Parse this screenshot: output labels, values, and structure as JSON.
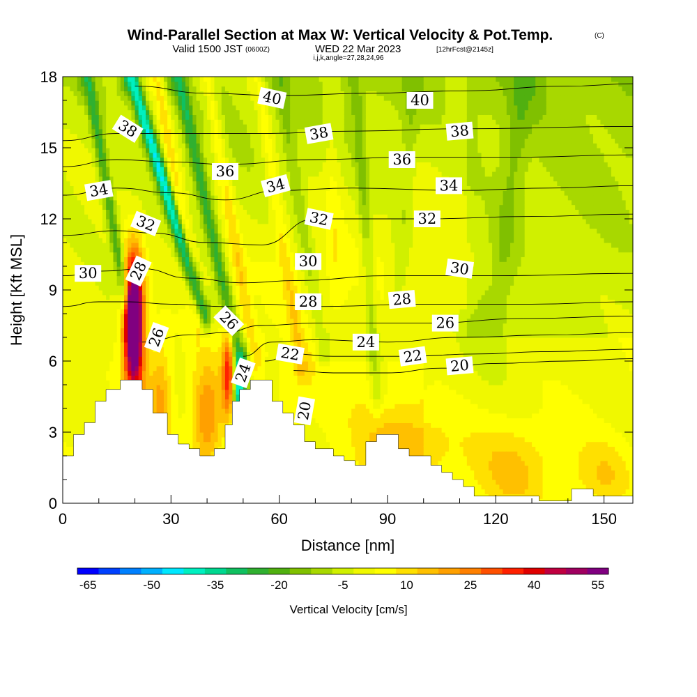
{
  "header": {
    "title": "Wind-Parallel Section at Max W: Vertical Velocity & Pot.Temp.",
    "copyright": "(C)",
    "valid_a": "Valid 1500 JST",
    "valid_z": "(0600Z)",
    "valid_b": "WED 22 Mar 2023",
    "forecast": "[12hrFcst@2145z]",
    "indices": "i,j,k,angle=27,28,24,96"
  },
  "chart_data": {
    "type": "heatmap",
    "title": "Wind-Parallel Section at Max W: Vertical Velocity & Pot.Temp.",
    "xlabel": "Distance [nm]",
    "ylabel": "Height [Kft MSL]",
    "xlim": [
      0,
      158
    ],
    "ylim": [
      0,
      18
    ],
    "x_ticks": [
      "0",
      "30",
      "60",
      "90",
      "120",
      "150"
    ],
    "y_ticks": [
      "0",
      "3",
      "6",
      "9",
      "12",
      "15",
      "18"
    ],
    "colorbar": {
      "label": "Vertical Velocity [cm/s]",
      "tick_labels": [
        "-65",
        "-50",
        "-35",
        "-20",
        "-5",
        "10",
        "25",
        "40",
        "55"
      ],
      "bins": [
        -65,
        -60,
        -55,
        -50,
        -45,
        -40,
        -35,
        -30,
        -25,
        -20,
        -15,
        -10,
        -5,
        0,
        5,
        10,
        15,
        20,
        25,
        30,
        35,
        40,
        45,
        50,
        55,
        60
      ],
      "colors": [
        "#0000ff",
        "#0040ff",
        "#0080ff",
        "#00b0ff",
        "#00e8ff",
        "#00f0c0",
        "#00d890",
        "#10c060",
        "#30b030",
        "#50b010",
        "#80c000",
        "#a8d800",
        "#d0f000",
        "#f0f800",
        "#ffff00",
        "#ffe000",
        "#ffc000",
        "#ffa000",
        "#ff8000",
        "#ff5000",
        "#ff2000",
        "#e00000",
        "#c00040",
        "#a00060",
        "#800080"
      ]
    },
    "terrain": [
      [
        0,
        2.0
      ],
      [
        3,
        2.0
      ],
      [
        3,
        2.9
      ],
      [
        6,
        2.9
      ],
      [
        6,
        3.4
      ],
      [
        9,
        3.4
      ],
      [
        9,
        4.3
      ],
      [
        12,
        4.3
      ],
      [
        12,
        4.8
      ],
      [
        16,
        4.8
      ],
      [
        16,
        5.2
      ],
      [
        22,
        5.2
      ],
      [
        22,
        4.8
      ],
      [
        25,
        4.8
      ],
      [
        25,
        3.8
      ],
      [
        29,
        3.8
      ],
      [
        29,
        2.9
      ],
      [
        32,
        2.9
      ],
      [
        32,
        2.5
      ],
      [
        35,
        2.5
      ],
      [
        35,
        2.3
      ],
      [
        38,
        2.3
      ],
      [
        38,
        2.0
      ],
      [
        42,
        2.0
      ],
      [
        42,
        2.3
      ],
      [
        45,
        2.3
      ],
      [
        45,
        3.3
      ],
      [
        47,
        3.3
      ],
      [
        47,
        4.3
      ],
      [
        49,
        4.3
      ],
      [
        49,
        4.8
      ],
      [
        52,
        4.8
      ],
      [
        52,
        5.2
      ],
      [
        58,
        5.2
      ],
      [
        58,
        4.3
      ],
      [
        61,
        4.3
      ],
      [
        61,
        3.8
      ],
      [
        64,
        3.8
      ],
      [
        64,
        3.3
      ],
      [
        67,
        3.3
      ],
      [
        67,
        2.6
      ],
      [
        70,
        2.6
      ],
      [
        70,
        2.3
      ],
      [
        75,
        2.3
      ],
      [
        75,
        2.0
      ],
      [
        78,
        2.0
      ],
      [
        78,
        1.8
      ],
      [
        81,
        1.8
      ],
      [
        81,
        1.6
      ],
      [
        84,
        1.6
      ],
      [
        84,
        2.6
      ],
      [
        87,
        2.6
      ],
      [
        87,
        2.9
      ],
      [
        93,
        2.9
      ],
      [
        93,
        2.3
      ],
      [
        96,
        2.3
      ],
      [
        96,
        2.0
      ],
      [
        102,
        2.0
      ],
      [
        102,
        1.6
      ],
      [
        105,
        1.6
      ],
      [
        105,
        1.3
      ],
      [
        108,
        1.3
      ],
      [
        108,
        1.0
      ],
      [
        111,
        1.0
      ],
      [
        111,
        0.7
      ],
      [
        114,
        0.7
      ],
      [
        114,
        0.3
      ],
      [
        132,
        0.3
      ],
      [
        132,
        0.1
      ],
      [
        141,
        0.1
      ],
      [
        141,
        0.6
      ],
      [
        147,
        0.6
      ],
      [
        147,
        0.3
      ],
      [
        158,
        0.3
      ]
    ],
    "theta_contours": [
      {
        "level": 20,
        "label": "20",
        "points": [
          [
            64,
            5.6
          ],
          [
            75,
            5.5
          ],
          [
            90,
            5.5
          ],
          [
            105,
            5.7
          ],
          [
            120,
            5.9
          ],
          [
            140,
            6.0
          ],
          [
            158,
            6.1
          ]
        ]
      },
      {
        "level": 22,
        "label": "22",
        "points": [
          [
            56,
            6.0
          ],
          [
            64,
            6.3
          ],
          [
            75,
            6.2
          ],
          [
            95,
            6.2
          ],
          [
            115,
            6.3
          ],
          [
            135,
            6.4
          ],
          [
            158,
            6.5
          ]
        ]
      },
      {
        "level": 24,
        "label": "24",
        "points": [
          [
            50,
            6.2
          ],
          [
            58,
            6.8
          ],
          [
            70,
            6.9
          ],
          [
            90,
            6.8
          ],
          [
            110,
            7.0
          ],
          [
            135,
            7.1
          ],
          [
            158,
            7.2
          ]
        ]
      },
      {
        "level": 26,
        "label": "26",
        "points": [
          [
            22,
            6.8
          ],
          [
            35,
            7.1
          ],
          [
            45,
            7.2
          ],
          [
            55,
            7.5
          ],
          [
            70,
            7.6
          ],
          [
            100,
            7.6
          ],
          [
            130,
            7.8
          ],
          [
            158,
            7.9
          ]
        ]
      },
      {
        "level": 28,
        "label": "28",
        "points": [
          [
            0,
            8.3
          ],
          [
            10,
            8.5
          ],
          [
            18,
            8.5
          ],
          [
            30,
            8.4
          ],
          [
            45,
            8.3
          ],
          [
            55,
            8.4
          ],
          [
            70,
            8.3
          ],
          [
            100,
            8.4
          ],
          [
            130,
            8.4
          ],
          [
            158,
            8.5
          ]
        ]
      },
      {
        "level": 30,
        "label": "30",
        "points": [
          [
            0,
            9.6
          ],
          [
            12,
            9.8
          ],
          [
            22,
            9.9
          ],
          [
            35,
            9.5
          ],
          [
            50,
            9.3
          ],
          [
            65,
            9.4
          ],
          [
            90,
            9.6
          ],
          [
            120,
            9.6
          ],
          [
            158,
            9.7
          ]
        ]
      },
      {
        "level": 32,
        "label": "32",
        "points": [
          [
            0,
            11.3
          ],
          [
            15,
            11.5
          ],
          [
            25,
            11.4
          ],
          [
            40,
            11.0
          ],
          [
            55,
            10.9
          ],
          [
            70,
            12.0
          ],
          [
            100,
            12.0
          ],
          [
            130,
            12.1
          ],
          [
            158,
            12.2
          ]
        ]
      },
      {
        "level": 34,
        "label": "34",
        "points": [
          [
            0,
            13.0
          ],
          [
            15,
            13.3
          ],
          [
            30,
            13.1
          ],
          [
            45,
            12.8
          ],
          [
            60,
            13.2
          ],
          [
            80,
            13.3
          ],
          [
            110,
            13.2
          ],
          [
            135,
            13.3
          ],
          [
            158,
            13.4
          ]
        ]
      },
      {
        "level": 36,
        "label": "36",
        "points": [
          [
            0,
            14.2
          ],
          [
            15,
            14.5
          ],
          [
            30,
            14.4
          ],
          [
            45,
            14.3
          ],
          [
            70,
            14.5
          ],
          [
            95,
            14.6
          ],
          [
            125,
            14.6
          ],
          [
            158,
            14.7
          ]
        ]
      },
      {
        "level": 38,
        "label": "38",
        "points": [
          [
            0,
            15.3
          ],
          [
            15,
            15.6
          ],
          [
            35,
            15.6
          ],
          [
            55,
            15.6
          ],
          [
            80,
            15.7
          ],
          [
            110,
            15.8
          ],
          [
            158,
            15.9
          ]
        ]
      },
      {
        "level": 40,
        "label": "40",
        "points": [
          [
            20,
            17.6
          ],
          [
            40,
            17.3
          ],
          [
            60,
            17.2
          ],
          [
            85,
            17.3
          ],
          [
            110,
            17.4
          ],
          [
            140,
            17.6
          ],
          [
            158,
            17.7
          ]
        ]
      }
    ],
    "theta_labels": [
      {
        "text": "40",
        "x": 58,
        "y": 17.1,
        "angle": 12
      },
      {
        "text": "40",
        "x": 99,
        "y": 17.0,
        "angle": 0
      },
      {
        "text": "38",
        "x": 18,
        "y": 15.8,
        "angle": 32
      },
      {
        "text": "38",
        "x": 71,
        "y": 15.6,
        "angle": -10
      },
      {
        "text": "38",
        "x": 110,
        "y": 15.7,
        "angle": -5
      },
      {
        "text": "36",
        "x": 45,
        "y": 14.0,
        "angle": 0
      },
      {
        "text": "36",
        "x": 94,
        "y": 14.5,
        "angle": 0
      },
      {
        "text": "34",
        "x": 10,
        "y": 13.2,
        "angle": -10
      },
      {
        "text": "34",
        "x": 59,
        "y": 13.4,
        "angle": -15
      },
      {
        "text": "34",
        "x": 107,
        "y": 13.4,
        "angle": 0
      },
      {
        "text": "32",
        "x": 23,
        "y": 11.8,
        "angle": 22
      },
      {
        "text": "32",
        "x": 71,
        "y": 12.0,
        "angle": 12
      },
      {
        "text": "32",
        "x": 101,
        "y": 12.0,
        "angle": 0
      },
      {
        "text": "30",
        "x": 7,
        "y": 9.7,
        "angle": 0
      },
      {
        "text": "30",
        "x": 68,
        "y": 10.2,
        "angle": 0
      },
      {
        "text": "30",
        "x": 110,
        "y": 9.9,
        "angle": 8
      },
      {
        "text": "28",
        "x": 21,
        "y": 9.8,
        "angle": -65
      },
      {
        "text": "28",
        "x": 68,
        "y": 8.5,
        "angle": 0
      },
      {
        "text": "28",
        "x": 94,
        "y": 8.6,
        "angle": -5
      },
      {
        "text": "26",
        "x": 26,
        "y": 7.0,
        "angle": -70
      },
      {
        "text": "26",
        "x": 46,
        "y": 7.7,
        "angle": 45
      },
      {
        "text": "26",
        "x": 106,
        "y": 7.6,
        "angle": 0
      },
      {
        "text": "24",
        "x": 50,
        "y": 5.5,
        "angle": -70
      },
      {
        "text": "24",
        "x": 84,
        "y": 6.8,
        "angle": 0
      },
      {
        "text": "22",
        "x": 63,
        "y": 6.3,
        "angle": 10
      },
      {
        "text": "22",
        "x": 97,
        "y": 6.2,
        "angle": -8
      },
      {
        "text": "20",
        "x": 67,
        "y": 3.9,
        "angle": -80
      },
      {
        "text": "20",
        "x": 110,
        "y": 5.8,
        "angle": -5
      }
    ],
    "w_features": [
      {
        "x": 19.5,
        "z": 8.2,
        "w": 60,
        "sx": 1.6,
        "sz": 1.6
      },
      {
        "x": 20,
        "z": 6.7,
        "w": 38,
        "sx": 2.2,
        "sz": 2.3
      },
      {
        "x": 46,
        "z": 5.5,
        "w": 35,
        "sx": 1.2,
        "sz": 1.3
      },
      {
        "x": 49,
        "z": 4.6,
        "w": -45,
        "sx": 1.4,
        "sz": 1.1
      },
      {
        "x": 27,
        "z": 4.5,
        "w": 18,
        "sx": 2.2,
        "sz": 1.6
      },
      {
        "x": 40,
        "z": 3.6,
        "w": 22,
        "sx": 3.0,
        "sz": 1.6
      },
      {
        "x": 96,
        "z": 2.4,
        "w": 14,
        "sx": 10,
        "sz": 1.4
      },
      {
        "x": 125,
        "z": 1.5,
        "w": 12,
        "sx": 8,
        "sz": 1.4
      },
      {
        "x": 150,
        "z": 1.2,
        "w": 10,
        "sx": 6,
        "sz": 1.0
      }
    ],
    "w_bands": [
      {
        "x0": 19,
        "z0": 18,
        "x1": 39,
        "z1": 8,
        "w": -38,
        "width": 1.6
      },
      {
        "x0": 32,
        "z0": 18,
        "x1": 49,
        "z1": 6,
        "w": -22,
        "width": 2.0
      },
      {
        "x0": 7,
        "z0": 18,
        "x1": 17,
        "z1": 9,
        "w": -20,
        "width": 1.7
      },
      {
        "x0": 26,
        "z0": 18,
        "x1": 38,
        "z1": 8,
        "w": 14,
        "width": 2.0
      },
      {
        "x0": 40,
        "z0": 18,
        "x1": 53,
        "z1": 6.2,
        "w": 12,
        "width": 2.0
      },
      {
        "x0": 54,
        "z0": 18,
        "x1": 66,
        "z1": 6,
        "w": 10,
        "width": 2.2
      },
      {
        "x0": 60,
        "z0": 18,
        "x1": 72,
        "z1": 6.5,
        "w": -8,
        "width": 2.2
      },
      {
        "x0": 81,
        "z0": 18,
        "x1": 87,
        "z1": 4.5,
        "w": -10,
        "width": 1.5
      },
      {
        "x0": 97,
        "z0": 18,
        "x1": 93,
        "z1": 9,
        "w": -6,
        "width": 2.2
      },
      {
        "x0": 128,
        "z0": 18,
        "x1": 120,
        "z1": 8,
        "w": -8,
        "width": 4.0
      },
      {
        "x0": 74,
        "z0": 18,
        "x1": 76,
        "z1": 9,
        "w": 6,
        "width": 2.0
      }
    ]
  }
}
